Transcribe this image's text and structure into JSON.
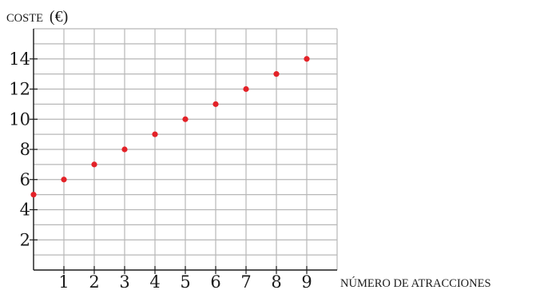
{
  "chart_data": {
    "type": "scatter",
    "xlabel": "NÚMERO DE ATRACCIONES",
    "ylabel": "COSTE",
    "ylabel_unit": "(€)",
    "x": [
      0,
      1,
      2,
      3,
      4,
      5,
      6,
      7,
      8,
      9
    ],
    "y": [
      5,
      6,
      7,
      8,
      9,
      10,
      11,
      12,
      13,
      14
    ],
    "x_ticks": [
      1,
      2,
      3,
      4,
      5,
      6,
      7,
      8,
      9
    ],
    "y_ticks": [
      2,
      4,
      6,
      8,
      10,
      12,
      14
    ],
    "xlim": [
      0,
      10
    ],
    "ylim": [
      0,
      16
    ],
    "grid": true,
    "point_color": "#e32228"
  }
}
